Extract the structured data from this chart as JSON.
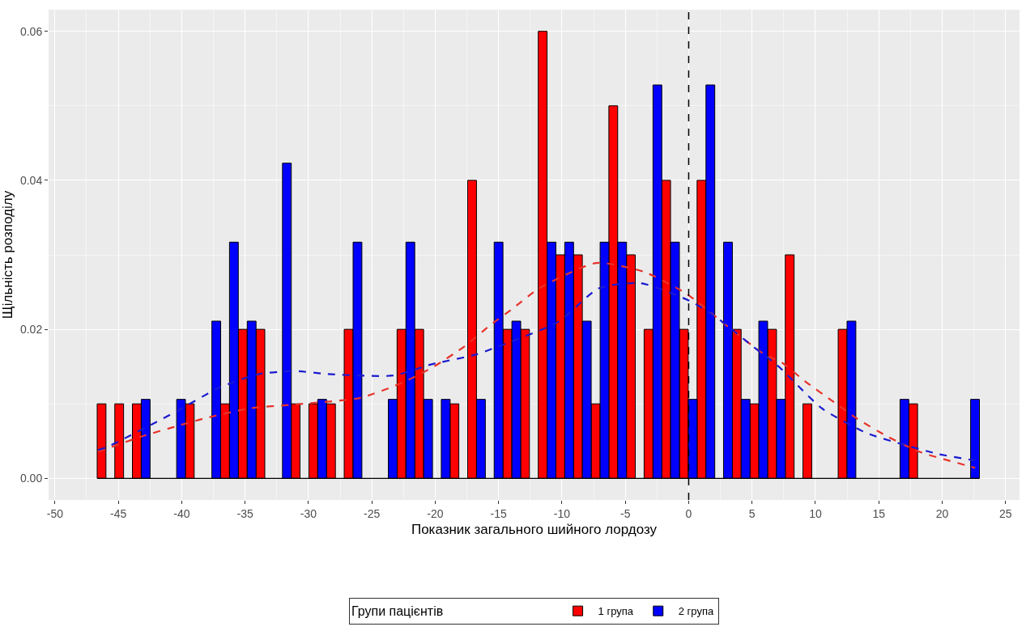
{
  "chart_data": {
    "type": "bar",
    "xlabel": "Показник загального шийного лордозу",
    "ylabel": "Щільність розподілу",
    "legend_title": "Групи пацієнтів",
    "xlim": [
      -50.5,
      26.1
    ],
    "ylim": [
      -0.0029,
      0.0629
    ],
    "xticks": [
      -50,
      -45,
      -40,
      -35,
      -30,
      -25,
      -20,
      -15,
      -10,
      -5,
      0,
      5,
      10,
      15,
      20,
      25
    ],
    "yticks": [
      {
        "value": 0,
        "label": "0.00"
      },
      {
        "value": 0.02,
        "label": "0.02"
      },
      {
        "value": 0.04,
        "label": "0.04"
      },
      {
        "value": 0.06,
        "label": "0.06"
      }
    ],
    "grid": true,
    "legend": "bottom",
    "ref_lines": [
      {
        "axis": "x",
        "value": 0,
        "color": "#000000",
        "line_style": "dashed"
      }
    ],
    "series": [
      {
        "name": "1 група",
        "color": "#ff0000",
        "x": [
          -46.32,
          -44.93,
          -43.54,
          -39.36,
          -36.58,
          -35.18,
          -33.79,
          -31.01,
          -29.62,
          -28.22,
          -26.83,
          -22.66,
          -21.26,
          -18.48,
          -17.09,
          -14.3,
          -12.91,
          -11.52,
          -10.13,
          -8.74,
          -7.34,
          -5.95,
          -4.56,
          -3.17,
          -1.78,
          -0.38,
          1.01,
          3.79,
          5.18,
          6.58,
          7.97,
          9.36,
          12.14,
          17.71
        ],
        "values": [
          0.01,
          0.01,
          0.01,
          0.01,
          0.01,
          0.02,
          0.02,
          0.01,
          0.01,
          0.01,
          0.02,
          0.02,
          0.02,
          0.01,
          0.04,
          0.02,
          0.02,
          0.06,
          0.03,
          0.03,
          0.01,
          0.05,
          0.03,
          0.02,
          0.04,
          0.02,
          0.04,
          0.02,
          0.01,
          0.02,
          0.03,
          0.01,
          0.02,
          0.01
        ]
      },
      {
        "name": "2 група",
        "color": "#0000ff",
        "x": [
          -42.84,
          -40.05,
          -37.27,
          -35.88,
          -34.48,
          -31.7,
          -28.92,
          -26.13,
          -23.35,
          -21.96,
          -20.56,
          -19.17,
          -16.39,
          -15.0,
          -13.6,
          -10.82,
          -9.43,
          -8.04,
          -6.64,
          -5.25,
          -2.47,
          -1.08,
          0.32,
          1.71,
          3.1,
          4.49,
          5.88,
          7.28,
          12.84,
          17.02,
          22.59
        ],
        "values": [
          0.0106,
          0.0106,
          0.0211,
          0.0317,
          0.0211,
          0.0423,
          0.0106,
          0.0317,
          0.0106,
          0.0317,
          0.0106,
          0.0106,
          0.0106,
          0.0317,
          0.0211,
          0.0317,
          0.0317,
          0.0211,
          0.0317,
          0.0317,
          0.0528,
          0.0317,
          0.0106,
          0.0528,
          0.0317,
          0.0106,
          0.0211,
          0.0106,
          0.0211,
          0.0106,
          0.0106
        ]
      },
      {
        "type": "line",
        "color": "#e8322a",
        "line_style": "dashed",
        "x": [
          -46.6,
          -45.9,
          -43.0,
          -40.4,
          -38.3,
          -34.6,
          -31.1,
          -29.8,
          -25.9,
          -22.5,
          -20.1,
          -17.7,
          -15.7,
          -13.8,
          -11.8,
          -7.3,
          -3.5,
          -0.2,
          3.5,
          6.1,
          7.3,
          9.2,
          11.4,
          13.3,
          15.7,
          18.3,
          22.2,
          22.6
        ],
        "values": [
          0.0036,
          0.004,
          0.0057,
          0.007,
          0.008,
          0.0094,
          0.0099,
          0.0101,
          0.0108,
          0.0129,
          0.015,
          0.0177,
          0.0205,
          0.0229,
          0.0255,
          0.0289,
          0.0277,
          0.0248,
          0.0198,
          0.0165,
          0.0156,
          0.013,
          0.0103,
          0.008,
          0.0056,
          0.0035,
          0.0016,
          0.0014
        ]
      },
      {
        "type": "line",
        "color": "#1a1ad0",
        "line_style": "dashed",
        "x": [
          -46.6,
          -45.9,
          -42.4,
          -40.4,
          -37.0,
          -33.9,
          -31.1,
          -28.5,
          -23.3,
          -20.3,
          -16.8,
          -15.5,
          -10.3,
          -7.1,
          -3.8,
          0.1,
          2.2,
          5.0,
          7.1,
          10.5,
          14.0,
          16.6,
          19.6,
          22.2,
          22.6
        ],
        "values": [
          0.0038,
          0.0042,
          0.0072,
          0.009,
          0.0122,
          0.014,
          0.0144,
          0.014,
          0.0138,
          0.0153,
          0.0166,
          0.0174,
          0.021,
          0.0255,
          0.0262,
          0.0238,
          0.0216,
          0.0178,
          0.015,
          0.0094,
          0.0061,
          0.0047,
          0.0033,
          0.0025,
          0.0024
        ]
      }
    ]
  }
}
